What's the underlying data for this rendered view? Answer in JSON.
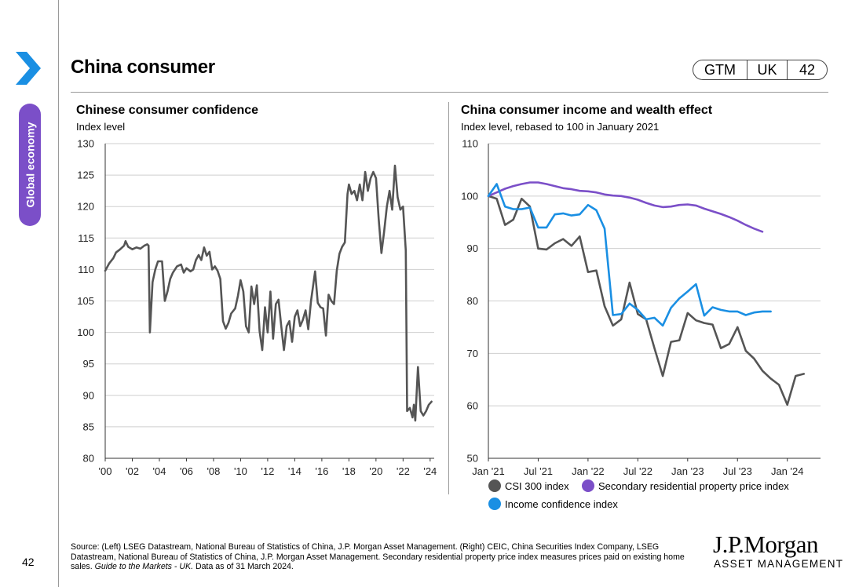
{
  "page": {
    "title": "China consumer",
    "side_tab": "Global economy",
    "badge": [
      "GTM",
      "UK",
      "42"
    ],
    "page_number": "42"
  },
  "charts": {
    "left": {
      "title": "Chinese consumer confidence",
      "subtitle": "Index level"
    },
    "right": {
      "title": "China consumer income and wealth effect",
      "subtitle": "Index level, rebased to 100 in January 2021"
    }
  },
  "legend": {
    "csi": "CSI 300 index",
    "prop": "Secondary residential property price index",
    "inc": "Income confidence index"
  },
  "footer": {
    "source_main": "Source: (Left) LSEG Datastream, National Bureau of Statistics of China, J.P. Morgan Asset Management. (Right) CEIC, China Securities Index Company, LSEG Datastream, National Bureau of Statistics of China, J.P. Morgan Asset Management. Secondary residential property price index measures prices paid on existing home sales. ",
    "source_italic": "Guide to the Markets - UK.",
    "source_tail": " Data as of 31 March 2024.",
    "brand_name": "J.P.Morgan",
    "brand_sub": "ASSET MANAGEMENT"
  },
  "colors": {
    "gray": "#555555",
    "purple": "#7b4fc8",
    "blue": "#1a8fe3",
    "accent": "#1a8fe3"
  },
  "chart_data": [
    {
      "type": "line",
      "title": "Chinese consumer confidence",
      "ylabel": "Index level",
      "ylim": [
        80,
        130
      ],
      "yticks": [
        "130",
        "125",
        "120",
        "115",
        "110",
        "105",
        "100",
        "95",
        "90",
        "85",
        "80"
      ],
      "xlim": [
        2000,
        2024.3
      ],
      "xticks": [
        "'00",
        "'02",
        "'04",
        "'06",
        "'08",
        "'10",
        "'12",
        "'14",
        "'16",
        "'18",
        "'20",
        "'22",
        "'24"
      ],
      "series": [
        {
          "name": "Consumer confidence",
          "color": "#555555",
          "points": [
            [
              2000.0,
              109.8
            ],
            [
              2000.3,
              111
            ],
            [
              2000.6,
              111.8
            ],
            [
              2000.8,
              112.7
            ],
            [
              2001.1,
              113.2
            ],
            [
              2001.4,
              113.8
            ],
            [
              2001.5,
              114.5
            ],
            [
              2001.7,
              113.6
            ],
            [
              2002.0,
              113.2
            ],
            [
              2002.3,
              113.5
            ],
            [
              2002.6,
              113.3
            ],
            [
              2002.9,
              113.8
            ],
            [
              2003.1,
              114
            ],
            [
              2003.2,
              113.8
            ],
            [
              2003.3,
              100
            ],
            [
              2003.5,
              108
            ],
            [
              2003.7,
              110
            ],
            [
              2003.9,
              111.3
            ],
            [
              2004.2,
              111.3
            ],
            [
              2004.4,
              105
            ],
            [
              2004.6,
              106.5
            ],
            [
              2004.8,
              108.5
            ],
            [
              2005.0,
              109.5
            ],
            [
              2005.3,
              110.5
            ],
            [
              2005.6,
              110.8
            ],
            [
              2005.8,
              109.5
            ],
            [
              2006.0,
              110.2
            ],
            [
              2006.3,
              109.7
            ],
            [
              2006.5,
              110
            ],
            [
              2006.7,
              111.5
            ],
            [
              2006.9,
              112.3
            ],
            [
              2007.1,
              111.5
            ],
            [
              2007.3,
              113.5
            ],
            [
              2007.5,
              112.2
            ],
            [
              2007.7,
              112.8
            ],
            [
              2007.9,
              110
            ],
            [
              2008.1,
              110.5
            ],
            [
              2008.3,
              109.8
            ],
            [
              2008.5,
              108.5
            ],
            [
              2008.7,
              101.8
            ],
            [
              2008.9,
              100.6
            ],
            [
              2009.1,
              101.5
            ],
            [
              2009.3,
              103
            ],
            [
              2009.6,
              103.8
            ],
            [
              2009.8,
              105.8
            ],
            [
              2010.0,
              108.3
            ],
            [
              2010.2,
              106.5
            ],
            [
              2010.4,
              101
            ],
            [
              2010.6,
              100
            ],
            [
              2010.8,
              107.3
            ],
            [
              2011.0,
              104.5
            ],
            [
              2011.2,
              107.5
            ],
            [
              2011.4,
              100.2
            ],
            [
              2011.6,
              97.2
            ],
            [
              2011.8,
              104
            ],
            [
              2012.0,
              100
            ],
            [
              2012.2,
              106.5
            ],
            [
              2012.4,
              99
            ],
            [
              2012.6,
              104.5
            ],
            [
              2012.8,
              105.2
            ],
            [
              2013.0,
              101
            ],
            [
              2013.2,
              97.2
            ],
            [
              2013.4,
              101
            ],
            [
              2013.6,
              101.8
            ],
            [
              2013.8,
              98.5
            ],
            [
              2014.0,
              102.5
            ],
            [
              2014.2,
              103.5
            ],
            [
              2014.4,
              101
            ],
            [
              2014.6,
              102
            ],
            [
              2014.8,
              103.5
            ],
            [
              2015.0,
              100.5
            ],
            [
              2015.2,
              105
            ],
            [
              2015.5,
              109.7
            ],
            [
              2015.7,
              104.7
            ],
            [
              2015.9,
              104
            ],
            [
              2016.1,
              103.8
            ],
            [
              2016.3,
              99.5
            ],
            [
              2016.5,
              106
            ],
            [
              2016.7,
              105
            ],
            [
              2016.9,
              104.5
            ],
            [
              2017.1,
              109.8
            ],
            [
              2017.3,
              112.5
            ],
            [
              2017.5,
              113.6
            ],
            [
              2017.7,
              114.3
            ],
            [
              2017.9,
              122
            ],
            [
              2018.0,
              123.5
            ],
            [
              2018.2,
              122
            ],
            [
              2018.4,
              122.5
            ],
            [
              2018.6,
              121
            ],
            [
              2018.8,
              123.5
            ],
            [
              2019.0,
              121
            ],
            [
              2019.2,
              125.5
            ],
            [
              2019.4,
              122.5
            ],
            [
              2019.6,
              124.5
            ],
            [
              2019.8,
              125.5
            ],
            [
              2020.0,
              124.5
            ],
            [
              2020.2,
              118
            ],
            [
              2020.4,
              112.6
            ],
            [
              2020.6,
              116
            ],
            [
              2020.8,
              120
            ],
            [
              2021.0,
              122.5
            ],
            [
              2021.2,
              119.5
            ],
            [
              2021.4,
              126.5
            ],
            [
              2021.6,
              121.5
            ],
            [
              2021.8,
              119.5
            ],
            [
              2022.0,
              120
            ],
            [
              2022.2,
              113
            ],
            [
              2022.3,
              87.5
            ],
            [
              2022.5,
              88
            ],
            [
              2022.7,
              86.5
            ],
            [
              2022.8,
              88.5
            ],
            [
              2022.9,
              86
            ],
            [
              2023.1,
              94.5
            ],
            [
              2023.3,
              87.5
            ],
            [
              2023.5,
              86.8
            ],
            [
              2023.7,
              87.5
            ],
            [
              2023.9,
              88.5
            ],
            [
              2024.1,
              89
            ]
          ]
        }
      ]
    },
    {
      "type": "line",
      "title": "China consumer income and wealth effect",
      "ylabel": "Index level, rebased to 100 in January 2021",
      "ylim": [
        50,
        110
      ],
      "yticks": [
        "110",
        "100",
        "90",
        "80",
        "70",
        "60",
        "50"
      ],
      "xticks": [
        "Jan '21",
        "Jul '21",
        "Jan '22",
        "Jul '22",
        "Jan '23",
        "Jul '23",
        "Jan '24"
      ],
      "x_unit": "months since Jan 2021",
      "xlim": [
        0,
        40
      ],
      "series": [
        {
          "name": "CSI 300 index",
          "color": "#555555",
          "values": [
            100,
            99.5,
            94.5,
            95.5,
            99.5,
            98,
            90,
            89.8,
            91,
            91.8,
            90.5,
            92.3,
            85.5,
            85.8,
            79,
            75.3,
            76.5,
            83.5,
            77.5,
            76.5,
            71,
            65.7,
            72.2,
            72.5,
            77.7,
            76.3,
            75.8,
            75.5,
            71,
            71.8,
            75,
            70.5,
            69,
            66.7,
            65.2,
            64,
            60.2,
            65.7,
            66.1
          ]
        },
        {
          "name": "Secondary residential property price index",
          "color": "#7b4fc8",
          "values": [
            100,
            100.7,
            101.4,
            101.9,
            102.3,
            102.6,
            102.6,
            102.3,
            101.9,
            101.5,
            101.3,
            101,
            100.9,
            100.7,
            100.3,
            100.1,
            100,
            99.7,
            99.3,
            98.7,
            98.2,
            97.9,
            98,
            98.3,
            98.4,
            98.2,
            97.6,
            97.1,
            96.6,
            96,
            95.3,
            94.5,
            93.8,
            93.2
          ]
        },
        {
          "name": "Income confidence index",
          "color": "#1a8fe3",
          "values": [
            100,
            102.3,
            98,
            97.5,
            97.5,
            97.8,
            94,
            94,
            96.5,
            96.7,
            96.3,
            96.5,
            98.3,
            97.3,
            93.8,
            77.3,
            77.5,
            79.5,
            78.3,
            76.5,
            76.8,
            75.3,
            78.7,
            80.5,
            81.8,
            83.2,
            77.2,
            78.8,
            78.3,
            78,
            78,
            77.3,
            77.8,
            78,
            78
          ]
        }
      ]
    }
  ]
}
